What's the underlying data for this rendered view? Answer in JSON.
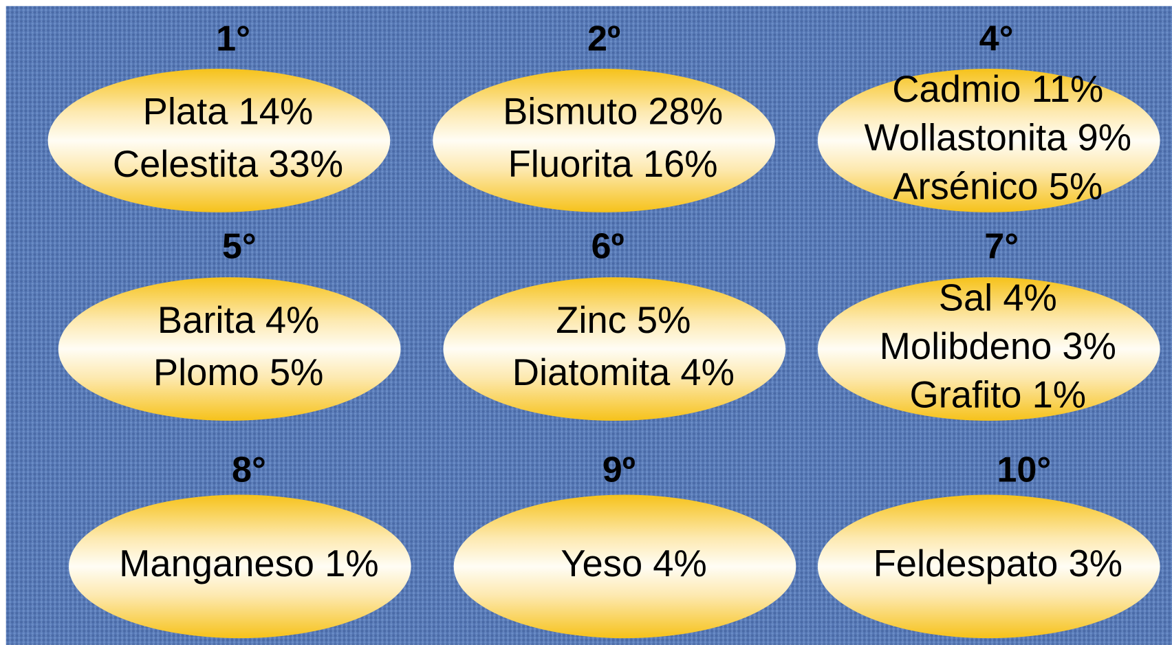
{
  "items": [
    {
      "rank": "1°",
      "lines": [
        "Plata 14%",
        "Celestita 33%"
      ]
    },
    {
      "rank": "2º",
      "lines": [
        "Bismuto 28%",
        "Fluorita 16%"
      ]
    },
    {
      "rank": "4°",
      "lines": [
        "Cadmio 11%",
        "Wollastonita 9%",
        "Arsénico 5%"
      ]
    },
    {
      "rank": "5°",
      "lines": [
        "Barita 4%",
        "Plomo 5%"
      ]
    },
    {
      "rank": "6º",
      "lines": [
        "Zinc 5%",
        "Diatomita 4%"
      ]
    },
    {
      "rank": "7°",
      "lines": [
        "Sal 4%",
        "Molibdeno 3%",
        "Grafito 1%"
      ]
    },
    {
      "rank": "8°",
      "lines": [
        "Manganeso 1%"
      ]
    },
    {
      "rank": "9º",
      "lines": [
        "Yeso 4%"
      ]
    },
    {
      "rank": "10°",
      "lines": [
        "Feldespato 3%"
      ]
    }
  ]
}
